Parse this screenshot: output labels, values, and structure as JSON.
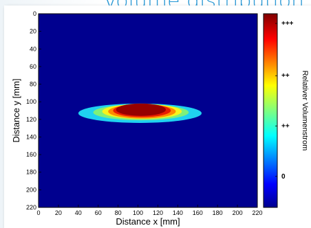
{
  "chart_data": {
    "type": "heatmap",
    "title": "Volume distribution",
    "xlabel": "Distance x [mm]",
    "ylabel": "Distance y [mm]",
    "colorbar_label": "Relativer Volumenstrom",
    "colorbar_ticks": [
      "+++",
      "++",
      "++",
      "0"
    ],
    "colorbar_tick_fractions": [
      0.95,
      0.68,
      0.42,
      0.16
    ],
    "xlim": [
      0,
      220
    ],
    "ylim": [
      0,
      220
    ],
    "y_axis_inverted": true,
    "xticks": [
      "0",
      "20",
      "40",
      "60",
      "80",
      "100",
      "120",
      "140",
      "160",
      "180",
      "200",
      "220"
    ],
    "yticks": [
      "0",
      "20",
      "40",
      "60",
      "80",
      "100",
      "120",
      "140",
      "160",
      "180",
      "200",
      "220"
    ],
    "colormap": "jet",
    "background_color": "#00008f",
    "spot": {
      "levels": [
        {
          "name": "cyan",
          "color": "#1fd2f0",
          "cx": 102,
          "cy": 113,
          "rx": 62,
          "ry": 11
        },
        {
          "name": "green",
          "color": "#7ff07a",
          "cx": 103,
          "cy": 112,
          "rx": 48,
          "ry": 9
        },
        {
          "name": "yellow",
          "color": "#f7f41c",
          "cx": 104,
          "cy": 111,
          "rx": 40,
          "ry": 8.5
        },
        {
          "name": "orange",
          "color": "#ff8a00",
          "cx": 104,
          "cy": 111,
          "rx": 34,
          "ry": 8
        },
        {
          "name": "red",
          "color": "#e81c00",
          "cx": 104,
          "cy": 110,
          "rx": 29,
          "ry": 7.5
        },
        {
          "name": "darkred",
          "color": "#960000",
          "cx": 103,
          "cy": 109,
          "rx": 25,
          "ry": 7
        }
      ]
    }
  }
}
